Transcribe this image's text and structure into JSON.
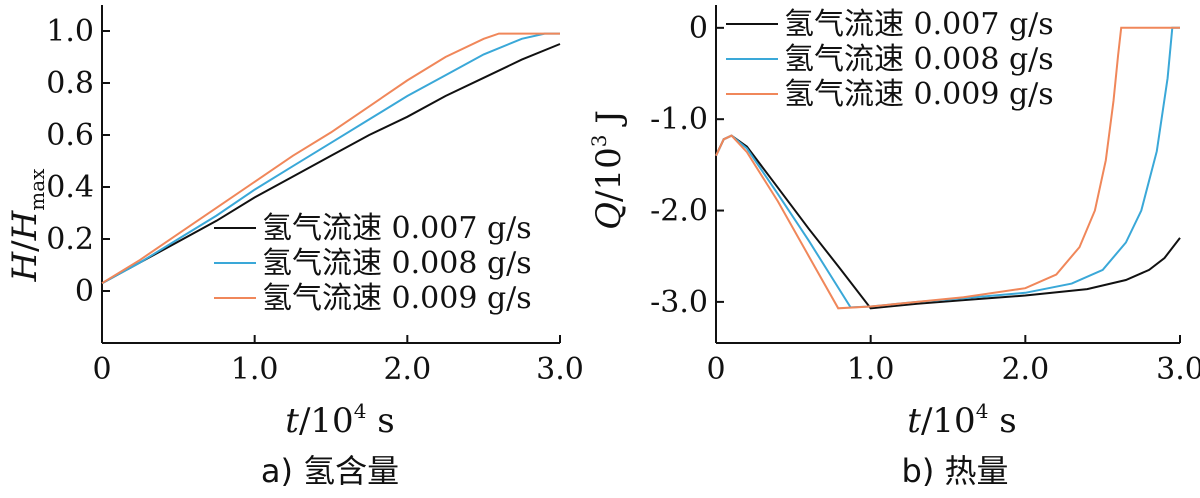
{
  "chart_data": [
    {
      "type": "line",
      "caption": "a)  氢含量",
      "xlabel_var": "t",
      "xlabel_unit": "/10",
      "xlabel_exp": "4",
      "xlabel_suffix": " s",
      "ylabel_var": "H",
      "ylabel_slash": "/",
      "ylabel_var2": "H",
      "ylabel_sub": "max",
      "xlim": [
        0,
        3.0
      ],
      "ylim": [
        -0.2,
        1.1
      ],
      "x_ticks": [
        0,
        1.0,
        2.0,
        3.0
      ],
      "x_tick_labels": [
        "0",
        "1.0",
        "2.0",
        "3.0"
      ],
      "y_ticks": [
        0,
        0.2,
        0.4,
        0.6,
        0.8,
        1.0
      ],
      "y_tick_labels": [
        "0",
        "0.2",
        "0.4",
        "0.6",
        "0.8",
        "1.0"
      ],
      "legend_position": "bottom-right",
      "series": [
        {
          "name": "氢气流速 0.007 g/s",
          "color": "#111111",
          "x": [
            0,
            0.25,
            0.5,
            0.75,
            1.0,
            1.25,
            1.5,
            1.75,
            2.0,
            2.25,
            2.5,
            2.75,
            3.0
          ],
          "y": [
            0.03,
            0.11,
            0.19,
            0.27,
            0.36,
            0.44,
            0.52,
            0.6,
            0.67,
            0.75,
            0.82,
            0.89,
            0.95
          ]
        },
        {
          "name": "氢气流速 0.008 g/s",
          "color": "#3aa8d8",
          "x": [
            0,
            0.25,
            0.5,
            0.75,
            1.0,
            1.25,
            1.5,
            1.75,
            2.0,
            2.25,
            2.5,
            2.75,
            2.9,
            3.0
          ],
          "y": [
            0.03,
            0.11,
            0.2,
            0.29,
            0.39,
            0.48,
            0.57,
            0.66,
            0.75,
            0.83,
            0.91,
            0.97,
            0.99,
            0.99
          ]
        },
        {
          "name": "氢气流速 0.009 g/s",
          "color": "#f0875a",
          "x": [
            0,
            0.25,
            0.5,
            0.75,
            1.0,
            1.25,
            1.5,
            1.75,
            2.0,
            2.25,
            2.5,
            2.6,
            2.75,
            3.0
          ],
          "y": [
            0.03,
            0.12,
            0.22,
            0.32,
            0.42,
            0.52,
            0.61,
            0.71,
            0.81,
            0.9,
            0.97,
            0.99,
            0.99,
            0.99
          ]
        }
      ]
    },
    {
      "type": "line",
      "caption": "b)  热量",
      "xlabel_var": "t",
      "xlabel_unit": "/10",
      "xlabel_exp": "4",
      "xlabel_suffix": " s",
      "ylabel_var": "Q",
      "ylabel_unit": "/10",
      "ylabel_exp": "3",
      "ylabel_suffix": " J",
      "xlim": [
        0,
        3.0
      ],
      "ylim": [
        -3.45,
        0.25
      ],
      "x_ticks": [
        0,
        1.0,
        2.0,
        3.0
      ],
      "x_tick_labels": [
        "0",
        "1.0",
        "2.0",
        "3.0"
      ],
      "y_ticks": [
        0,
        -1.0,
        -2.0,
        -3.0
      ],
      "y_tick_labels": [
        "0",
        "-1.0",
        "-2.0",
        "-3.0"
      ],
      "legend_position": "top-left",
      "series": [
        {
          "name": "氢气流速 0.007 g/s",
          "color": "#111111",
          "x": [
            0,
            0.05,
            0.1,
            0.2,
            0.4,
            0.6,
            0.8,
            1.0,
            1.3,
            1.6,
            2.0,
            2.4,
            2.65,
            2.8,
            2.9,
            3.0
          ],
          "y": [
            -1.4,
            -1.22,
            -1.18,
            -1.3,
            -1.75,
            -2.2,
            -2.63,
            -3.07,
            -3.02,
            -2.98,
            -2.93,
            -2.86,
            -2.76,
            -2.65,
            -2.52,
            -2.3
          ]
        },
        {
          "name": "氢气流速 0.008 g/s",
          "color": "#3aa8d8",
          "x": [
            0,
            0.05,
            0.1,
            0.2,
            0.4,
            0.6,
            0.87,
            1.0,
            1.3,
            1.6,
            2.0,
            2.3,
            2.5,
            2.65,
            2.75,
            2.85,
            2.92,
            2.95,
            3.0
          ],
          "y": [
            -1.4,
            -1.22,
            -1.18,
            -1.32,
            -1.82,
            -2.33,
            -3.06,
            -3.05,
            -3.0,
            -2.96,
            -2.9,
            -2.8,
            -2.65,
            -2.35,
            -2.0,
            -1.35,
            -0.55,
            0,
            0
          ]
        },
        {
          "name": "氢气流速 0.009 g/s",
          "color": "#f0875a",
          "x": [
            0,
            0.05,
            0.1,
            0.2,
            0.4,
            0.6,
            0.79,
            1.0,
            1.3,
            1.6,
            2.0,
            2.2,
            2.35,
            2.45,
            2.52,
            2.57,
            2.6,
            2.62,
            2.8,
            3.0
          ],
          "y": [
            -1.4,
            -1.22,
            -1.18,
            -1.36,
            -1.9,
            -2.5,
            -3.07,
            -3.05,
            -3.0,
            -2.95,
            -2.85,
            -2.7,
            -2.4,
            -2.0,
            -1.45,
            -0.8,
            -0.3,
            0,
            0,
            0
          ]
        }
      ]
    }
  ]
}
